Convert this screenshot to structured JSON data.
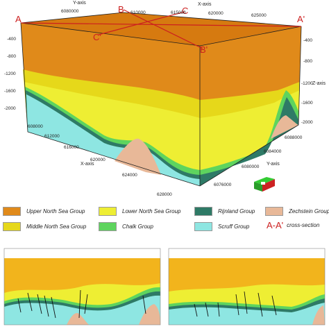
{
  "block": {
    "y_axis_title": "Y-axis",
    "x_axis_title_top": "X-axis",
    "x_axis_title_bottom": "X-axis",
    "y_axis_title_right": "Y-axis",
    "z_axis_title": "Z-axis",
    "top_x_ticks": [
      "6080000",
      "610000",
      "615000",
      "620000",
      "625000"
    ],
    "left_z_ticks": [
      "-400",
      "-800",
      "-1200",
      "-1600",
      "-2000"
    ],
    "right_z_ticks": [
      "-400",
      "-800",
      "-1200",
      "-1600",
      "-2000"
    ],
    "bottom_x_ticks": [
      "608000",
      "612000",
      "616000",
      "620000",
      "624000",
      "628000"
    ],
    "right_y_ticks": [
      "6088000",
      "6084000",
      "6080000",
      "6076000"
    ],
    "markers": {
      "A": "A",
      "A_prime": "A'",
      "B": "B",
      "B_prime": "B'",
      "C": "C",
      "C_prime": "C'"
    },
    "colors": {
      "upper_north_sea": "#e08a1a",
      "middle_north_sea": "#e6d81a",
      "lower_north_sea": "#eeee33",
      "chalk": "#5ed45e",
      "rijnland": "#2e7a66",
      "scruff": "#8ee6e2",
      "zechstein": "#e8b898",
      "marker": "#cc1f1f"
    }
  },
  "legend": [
    {
      "label": "Upper North Sea Group",
      "color": "#e08a1a"
    },
    {
      "label": "Lower North Sea Group",
      "color": "#eeee33"
    },
    {
      "label": "Rijnland Group",
      "color": "#2e7a66"
    },
    {
      "label": "Zechstein Group",
      "color": "#e8b898"
    },
    {
      "label": "Middle North Sea Group",
      "color": "#e6d81a"
    },
    {
      "label": "Chalk Group",
      "color": "#5ed45e"
    },
    {
      "label": "Scruff Group",
      "color": "#8ee6e2"
    },
    {
      "label": "cross-section",
      "marker": "A-A'"
    }
  ]
}
